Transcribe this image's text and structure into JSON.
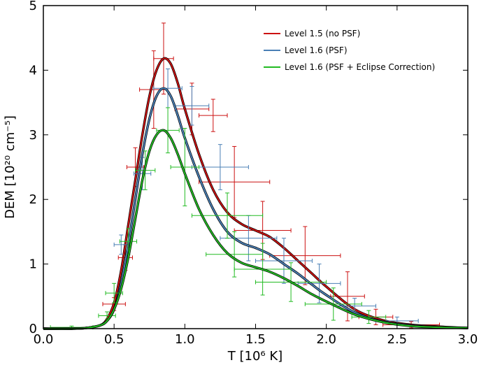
{
  "chart_data": {
    "type": "line",
    "xlabel": "T [10⁶ K]",
    "ylabel": "DEM [10²⁰ cm⁻⁵]",
    "xlim": [
      0.0,
      3.0
    ],
    "ylim": [
      0,
      5
    ],
    "x_ticks": [
      "0.0",
      "0.5",
      "1.0",
      "1.5",
      "2.0",
      "2.5",
      "3.0"
    ],
    "y_ticks": [
      "0",
      "1",
      "2",
      "3",
      "4",
      "5"
    ],
    "legend_position": "top-right",
    "grid": false,
    "series": [
      {
        "name": "Level 1.5 (no PSF)",
        "color": "#cc1111",
        "x": [
          0.0,
          0.2,
          0.3,
          0.4,
          0.45,
          0.5,
          0.55,
          0.6,
          0.65,
          0.7,
          0.75,
          0.8,
          0.85,
          0.9,
          0.95,
          1.0,
          1.1,
          1.2,
          1.3,
          1.4,
          1.5,
          1.6,
          1.7,
          1.8,
          1.9,
          2.0,
          2.2,
          2.4,
          2.6,
          2.8,
          3.0
        ],
        "y": [
          0.0,
          0.0,
          0.01,
          0.05,
          0.15,
          0.4,
          0.9,
          1.6,
          2.3,
          3.0,
          3.6,
          4.0,
          4.18,
          4.1,
          3.8,
          3.4,
          2.7,
          2.15,
          1.8,
          1.62,
          1.52,
          1.42,
          1.25,
          1.05,
          0.85,
          0.65,
          0.3,
          0.13,
          0.06,
          0.03,
          0.01
        ],
        "errorbars": [
          {
            "x": 0.85,
            "y": 4.18,
            "xerr": 0.07,
            "yerr": 0.55
          },
          {
            "x": 0.78,
            "y": 3.7,
            "xerr": 0.1,
            "yerr": 0.6
          },
          {
            "x": 0.65,
            "y": 2.5,
            "xerr": 0.06,
            "yerr": 0.3
          },
          {
            "x": 0.58,
            "y": 1.1,
            "xerr": 0.05,
            "yerr": 0.2
          },
          {
            "x": 1.05,
            "y": 3.4,
            "xerr": 0.12,
            "yerr": 0.4
          },
          {
            "x": 1.2,
            "y": 3.3,
            "xerr": 0.1,
            "yerr": 0.25
          },
          {
            "x": 1.35,
            "y": 2.27,
            "xerr": 0.25,
            "yerr": 0.55
          },
          {
            "x": 1.55,
            "y": 1.52,
            "xerr": 0.2,
            "yerr": 0.45
          },
          {
            "x": 1.85,
            "y": 1.13,
            "xerr": 0.25,
            "yerr": 0.45
          },
          {
            "x": 2.15,
            "y": 0.5,
            "xerr": 0.12,
            "yerr": 0.38
          },
          {
            "x": 2.35,
            "y": 0.18,
            "xerr": 0.12,
            "yerr": 0.12
          },
          {
            "x": 2.6,
            "y": 0.06,
            "xerr": 0.2,
            "yerr": 0.05
          },
          {
            "x": 0.5,
            "y": 0.38,
            "xerr": 0.08,
            "yerr": 0.1
          }
        ]
      },
      {
        "name": "Level 1.6 (PSF)",
        "color": "#4a7fb5",
        "x": [
          0.0,
          0.2,
          0.3,
          0.4,
          0.45,
          0.5,
          0.55,
          0.6,
          0.65,
          0.7,
          0.75,
          0.8,
          0.85,
          0.9,
          0.95,
          1.0,
          1.1,
          1.2,
          1.3,
          1.4,
          1.5,
          1.6,
          1.7,
          1.8,
          1.9,
          2.0,
          2.2,
          2.4,
          2.6,
          2.8,
          3.0
        ],
        "y": [
          0.0,
          0.0,
          0.01,
          0.05,
          0.12,
          0.3,
          0.7,
          1.3,
          2.0,
          2.7,
          3.25,
          3.6,
          3.72,
          3.6,
          3.3,
          2.95,
          2.35,
          1.85,
          1.5,
          1.33,
          1.25,
          1.15,
          1.0,
          0.85,
          0.68,
          0.52,
          0.25,
          0.11,
          0.05,
          0.02,
          0.01
        ],
        "errorbars": [
          {
            "x": 0.88,
            "y": 3.72,
            "xerr": 0.1,
            "yerr": 0.3
          },
          {
            "x": 1.05,
            "y": 3.45,
            "xerr": 0.12,
            "yerr": 0.3
          },
          {
            "x": 0.7,
            "y": 2.4,
            "xerr": 0.06,
            "yerr": 0.25
          },
          {
            "x": 0.55,
            "y": 1.3,
            "xerr": 0.05,
            "yerr": 0.15
          },
          {
            "x": 1.25,
            "y": 2.5,
            "xerr": 0.2,
            "yerr": 0.35
          },
          {
            "x": 1.45,
            "y": 1.4,
            "xerr": 0.2,
            "yerr": 0.35
          },
          {
            "x": 1.7,
            "y": 1.05,
            "xerr": 0.2,
            "yerr": 0.35
          },
          {
            "x": 1.95,
            "y": 0.7,
            "xerr": 0.15,
            "yerr": 0.3
          },
          {
            "x": 2.2,
            "y": 0.35,
            "xerr": 0.15,
            "yerr": 0.12
          },
          {
            "x": 2.5,
            "y": 0.12,
            "xerr": 0.15,
            "yerr": 0.06
          }
        ]
      },
      {
        "name": "Level 1.6 (PSF + Eclipse Correction)",
        "color": "#22bb22",
        "x": [
          0.0,
          0.2,
          0.3,
          0.4,
          0.45,
          0.5,
          0.55,
          0.6,
          0.65,
          0.7,
          0.75,
          0.8,
          0.85,
          0.9,
          0.95,
          1.0,
          1.1,
          1.2,
          1.3,
          1.4,
          1.5,
          1.6,
          1.7,
          1.8,
          1.9,
          2.0,
          2.2,
          2.4,
          2.6,
          2.8,
          3.0
        ],
        "y": [
          0.0,
          0.0,
          0.01,
          0.05,
          0.12,
          0.3,
          0.62,
          1.1,
          1.7,
          2.3,
          2.75,
          3.0,
          3.07,
          2.95,
          2.7,
          2.4,
          1.85,
          1.45,
          1.17,
          1.02,
          0.95,
          0.88,
          0.78,
          0.66,
          0.53,
          0.42,
          0.22,
          0.1,
          0.04,
          0.02,
          0.01
        ],
        "errorbars": [
          {
            "x": 0.88,
            "y": 3.07,
            "xerr": 0.08,
            "yerr": 0.35
          },
          {
            "x": 1.0,
            "y": 2.5,
            "xerr": 0.1,
            "yerr": 0.6
          },
          {
            "x": 0.72,
            "y": 2.45,
            "xerr": 0.07,
            "yerr": 0.3
          },
          {
            "x": 0.6,
            "y": 1.35,
            "xerr": 0.06,
            "yerr": 0.2
          },
          {
            "x": 0.5,
            "y": 0.55,
            "xerr": 0.06,
            "yerr": 0.15
          },
          {
            "x": 1.3,
            "y": 1.75,
            "xerr": 0.25,
            "yerr": 0.35
          },
          {
            "x": 1.35,
            "y": 1.15,
            "xerr": 0.2,
            "yerr": 0.35
          },
          {
            "x": 1.55,
            "y": 0.92,
            "xerr": 0.2,
            "yerr": 0.4
          },
          {
            "x": 1.75,
            "y": 0.72,
            "xerr": 0.25,
            "yerr": 0.3
          },
          {
            "x": 2.05,
            "y": 0.38,
            "xerr": 0.2,
            "yerr": 0.25
          },
          {
            "x": 2.3,
            "y": 0.18,
            "xerr": 0.12,
            "yerr": 0.1
          },
          {
            "x": 0.2,
            "y": 0.02,
            "xerr": 0.15,
            "yerr": 0.02
          },
          {
            "x": 0.45,
            "y": 0.2,
            "xerr": 0.06,
            "yerr": 0.06
          }
        ]
      }
    ]
  }
}
